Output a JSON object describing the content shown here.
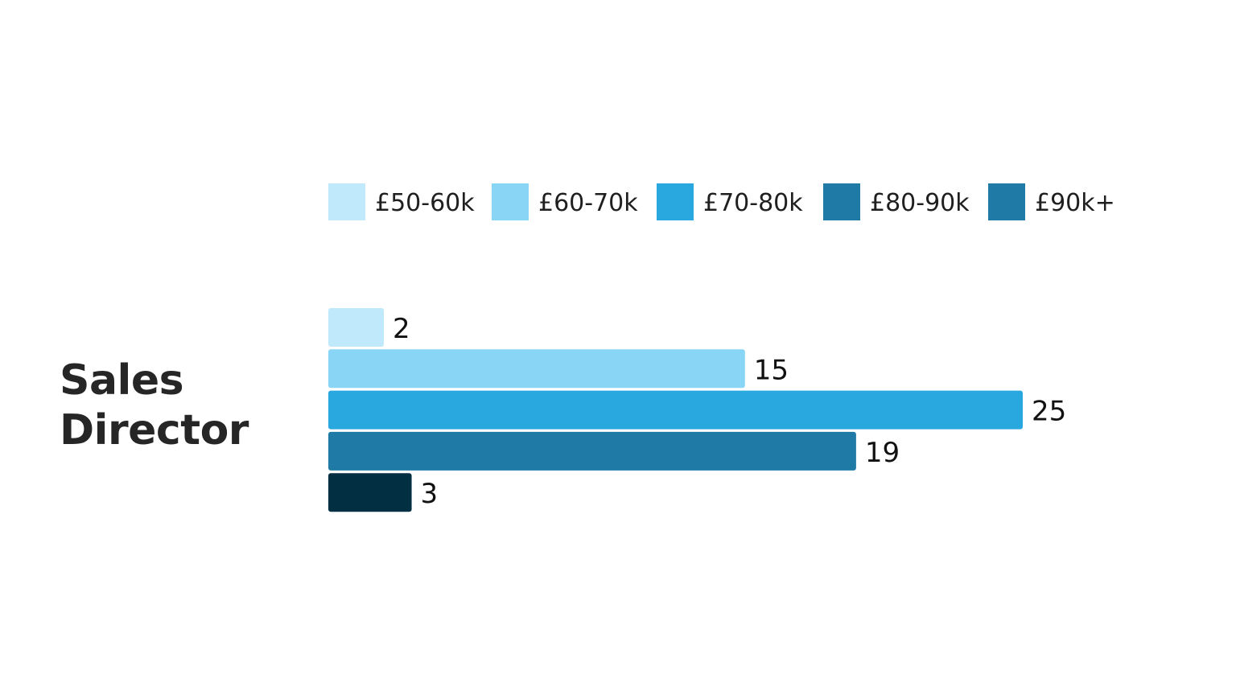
{
  "chart_data": {
    "type": "bar",
    "orientation": "horizontal",
    "title": "Sales Director",
    "title_lines": [
      "Sales",
      "Director"
    ],
    "categories": [
      "£50-60k",
      "£60-70k",
      "£70-80k",
      "£80-90k",
      "£90k+"
    ],
    "values": [
      2,
      15,
      25,
      19,
      3
    ],
    "colors": [
      "#c0eafc",
      "#88d5f5",
      "#29a8e0",
      "#1f7aa6",
      "#032f42"
    ],
    "legend_colors": [
      "#c0eafc",
      "#88d5f5",
      "#29a8e0",
      "#1f7aa6",
      "#1f7aa6"
    ],
    "legend_position": "top",
    "xlim": [
      0,
      25
    ],
    "grid": false,
    "data_labels": true,
    "xlabel": "",
    "ylabel": ""
  }
}
